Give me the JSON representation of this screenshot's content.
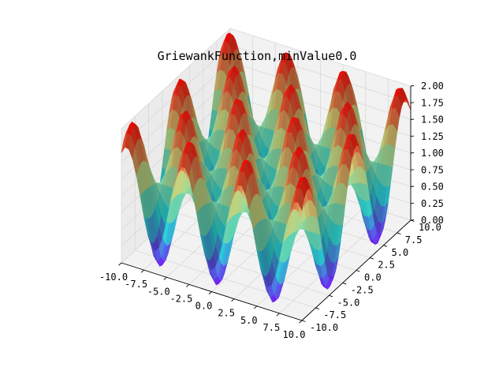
{
  "chart_data": {
    "type": "surface3d",
    "title": "GriewankFunction,minValue0.0",
    "function": "1 + (x^2 + y^2)/4000 - cos(x) * cos(y/sqrt(2))",
    "x_range": [
      -10,
      10
    ],
    "y_range": [
      -10,
      10
    ],
    "z_range": [
      0,
      2.0
    ],
    "x_ticks": [
      "-10.0",
      "-7.5",
      "-5.0",
      "-2.5",
      "0.0",
      "2.5",
      "5.0",
      "7.5",
      "10.0"
    ],
    "y_ticks": [
      "-10.0",
      "-7.5",
      "-5.0",
      "-2.5",
      "0.0",
      "2.5",
      "5.0",
      "7.5",
      "10.0"
    ],
    "z_ticks": [
      "0.00",
      "0.25",
      "0.50",
      "0.75",
      "1.00",
      "1.25",
      "1.50",
      "1.75",
      "2.00"
    ],
    "colormap": "rainbow",
    "colormap_stops": [
      "#8000ff",
      "#2adddd",
      "#d4dd80",
      "#ff0000"
    ],
    "grid": true,
    "pane_color": "#f2f2f2",
    "grid_color": "#d9d9d9"
  }
}
